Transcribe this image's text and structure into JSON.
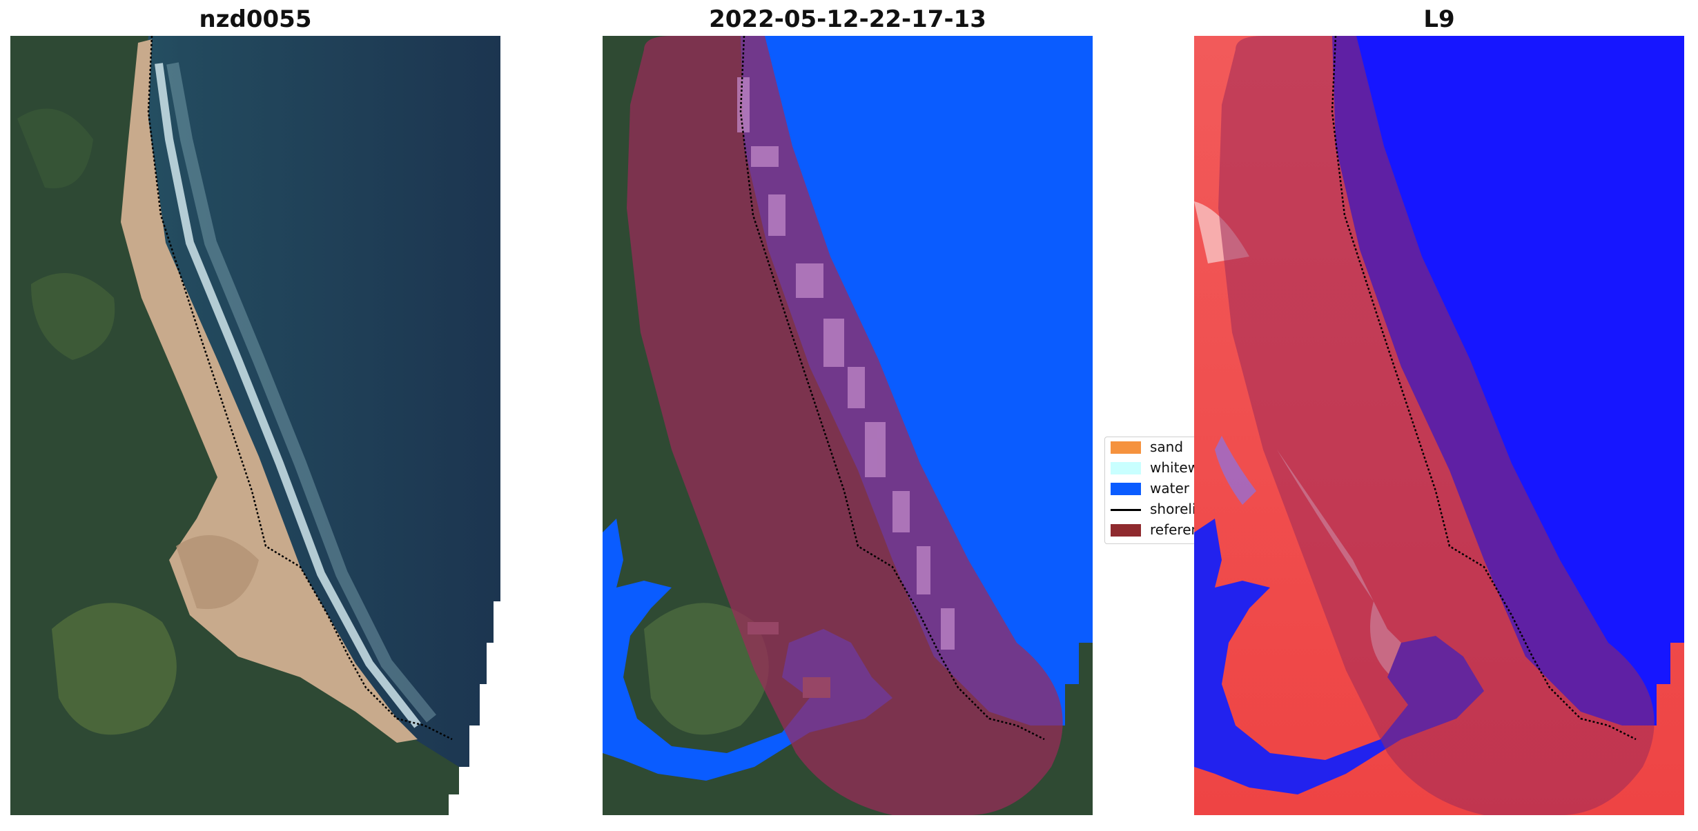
{
  "panels": [
    {
      "title": "nzd0055"
    },
    {
      "title": "2022-05-12-22-17-13"
    },
    {
      "title": "L9"
    }
  ],
  "legend": {
    "placement": "center-right of middle panel",
    "items": [
      {
        "label": "sand",
        "color": "#f5923e",
        "kind": "patch"
      },
      {
        "label": "whitewater",
        "color": "#c9ffff",
        "kind": "patch"
      },
      {
        "label": "water",
        "color": "#0a5cff",
        "kind": "patch"
      },
      {
        "label": "shoreline",
        "color": "#000000",
        "kind": "line"
      },
      {
        "label": "reference shoreline buffer",
        "color": "#8f2a2e",
        "kind": "patch"
      }
    ]
  },
  "colors": {
    "land": "#2f4a33",
    "land_light": "#4e6b3e",
    "sand": "#c9ab8d",
    "ocean_deep": "#1c3550",
    "ocean_near": "#2a5e6e",
    "surf": "#d8ecf0",
    "water_class": "#0a5cff",
    "buffer": "#8f2a4a",
    "index_red": "#ee3b3b",
    "index_blue": "#1a1aff"
  }
}
